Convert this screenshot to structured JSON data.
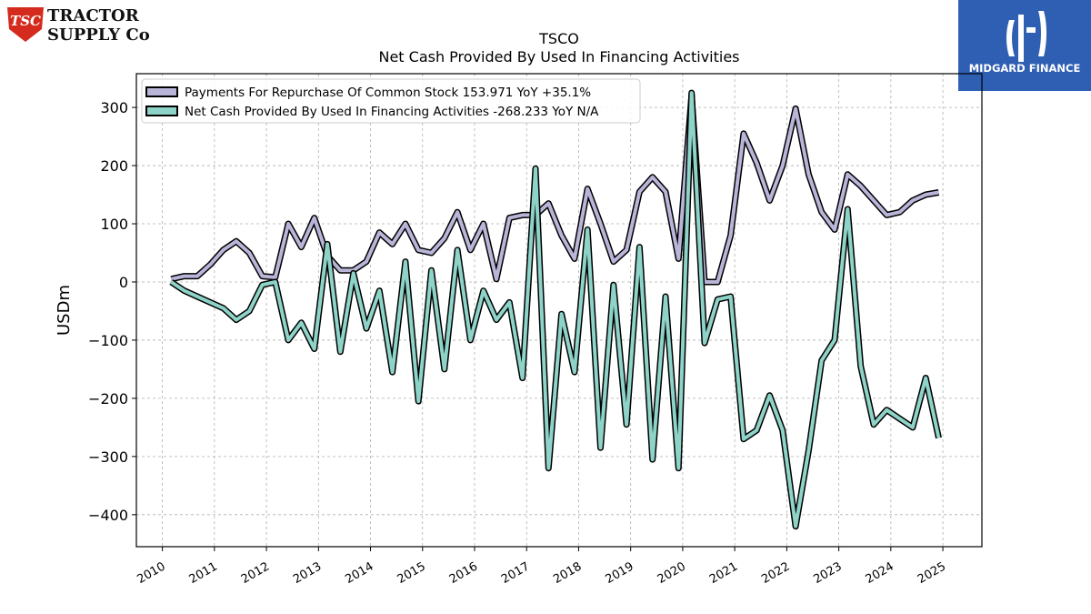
{
  "brand_left": {
    "mark": "TSC",
    "line1": "TRACTOR",
    "line2": "SUPPLY Co"
  },
  "brand_right": {
    "text": "MIDGARD FINANCE"
  },
  "chart_data": {
    "type": "line",
    "title": "TSCO",
    "subtitle": "Net Cash Provided By Used In Financing Activities",
    "ylabel": "USDm",
    "xlabel": "",
    "ylim": [
      -455,
      358
    ],
    "xlim": [
      2009.5,
      2025.75
    ],
    "yticks": [
      300,
      200,
      100,
      0,
      -100,
      -200,
      -300,
      -400
    ],
    "ytick_labels": [
      "300",
      "200",
      "100",
      "0",
      "−100",
      "−200",
      "−300",
      "−400"
    ],
    "xticks": [
      2010,
      2011,
      2012,
      2013,
      2014,
      2015,
      2016,
      2017,
      2018,
      2019,
      2020,
      2021,
      2022,
      2023,
      2024,
      2025
    ],
    "grid": true,
    "legend_position": "top-left",
    "series": [
      {
        "name": "Payments For Repurchase Of Common Stock",
        "legend_label": "Payments For Repurchase Of Common Stock  153.971 YoY +35.1%",
        "color": "#b8b5d8",
        "x": [
          2010.17,
          2010.42,
          2010.67,
          2010.92,
          2011.17,
          2011.42,
          2011.67,
          2011.92,
          2012.17,
          2012.42,
          2012.67,
          2012.92,
          2013.17,
          2013.42,
          2013.67,
          2013.92,
          2014.17,
          2014.42,
          2014.67,
          2014.92,
          2015.17,
          2015.42,
          2015.67,
          2015.92,
          2016.17,
          2016.42,
          2016.67,
          2016.92,
          2017.17,
          2017.42,
          2017.67,
          2017.92,
          2018.17,
          2018.42,
          2018.67,
          2018.92,
          2019.17,
          2019.42,
          2019.67,
          2019.92,
          2020.17,
          2020.42,
          2020.67,
          2020.92,
          2021.17,
          2021.42,
          2021.67,
          2021.92,
          2022.17,
          2022.42,
          2022.67,
          2022.92,
          2023.17,
          2023.42,
          2023.67,
          2023.92,
          2024.17,
          2024.42,
          2024.67,
          2024.92
        ],
        "y": [
          5,
          10,
          10,
          30,
          55,
          70,
          50,
          10,
          8,
          100,
          60,
          110,
          45,
          20,
          20,
          35,
          85,
          65,
          100,
          55,
          50,
          75,
          120,
          55,
          100,
          5,
          110,
          115,
          115,
          135,
          80,
          40,
          160,
          100,
          35,
          55,
          155,
          180,
          155,
          40,
          320,
          0,
          0,
          80,
          255,
          205,
          140,
          200,
          298,
          185,
          120,
          90,
          185,
          165,
          140,
          115,
          120,
          140,
          150,
          153.971
        ]
      },
      {
        "name": "Net Cash Provided By Used In Financing Activities",
        "legend_label": "Net Cash Provided By Used In Financing Activities  -268.233 YoY N/A",
        "color": "#8dd3c7",
        "x": [
          2010.17,
          2010.42,
          2010.67,
          2010.92,
          2011.17,
          2011.42,
          2011.67,
          2011.92,
          2012.17,
          2012.42,
          2012.67,
          2012.92,
          2013.17,
          2013.42,
          2013.67,
          2013.92,
          2014.17,
          2014.42,
          2014.67,
          2014.92,
          2015.17,
          2015.42,
          2015.67,
          2015.92,
          2016.17,
          2016.42,
          2016.67,
          2016.92,
          2017.17,
          2017.42,
          2017.67,
          2017.92,
          2018.17,
          2018.42,
          2018.67,
          2018.92,
          2019.17,
          2019.42,
          2019.67,
          2019.92,
          2020.17,
          2020.42,
          2020.67,
          2020.92,
          2021.17,
          2021.42,
          2021.67,
          2021.92,
          2022.17,
          2022.42,
          2022.67,
          2022.92,
          2023.17,
          2023.42,
          2023.67,
          2023.92,
          2024.17,
          2024.42,
          2024.67,
          2024.92
        ],
        "y": [
          0,
          -15,
          -25,
          -35,
          -45,
          -65,
          -50,
          -5,
          0,
          -100,
          -70,
          -115,
          65,
          -120,
          15,
          -80,
          -15,
          -155,
          35,
          -205,
          20,
          -150,
          55,
          -100,
          -15,
          -65,
          -35,
          -165,
          195,
          -320,
          -55,
          -155,
          90,
          -285,
          -5,
          -245,
          60,
          -305,
          -25,
          -320,
          325,
          -105,
          -30,
          -25,
          -270,
          -255,
          -195,
          -255,
          -420,
          -290,
          -135,
          -100,
          125,
          -145,
          -245,
          -220,
          -235,
          -250,
          -165,
          -268.233
        ]
      }
    ]
  }
}
